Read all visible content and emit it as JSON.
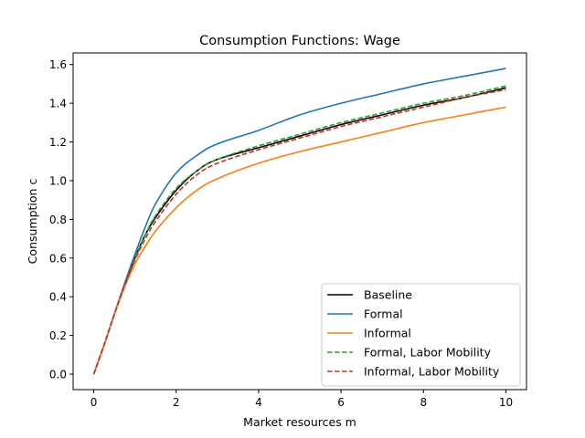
{
  "chart_data": {
    "type": "line",
    "title": "Consumption Functions: Wage",
    "xlabel": "Market resources m",
    "ylabel": "Consumption c",
    "xlim": [
      -0.5,
      10.5
    ],
    "ylim": [
      -0.08,
      1.66
    ],
    "xticks": [
      0,
      2,
      4,
      6,
      8,
      10
    ],
    "xtick_labels": [
      "0",
      "2",
      "4",
      "6",
      "8",
      "10"
    ],
    "yticks": [
      0.0,
      0.2,
      0.4,
      0.6,
      0.8,
      1.0,
      1.2,
      1.4,
      1.6
    ],
    "ytick_labels": [
      "0.0",
      "0.2",
      "0.4",
      "0.6",
      "0.8",
      "1.0",
      "1.2",
      "1.4",
      "1.6"
    ],
    "grid": false,
    "legend_position": "lower-right",
    "x": [
      0,
      0.25,
      0.5,
      0.75,
      1.0,
      1.25,
      1.5,
      2,
      2.5,
      3,
      4,
      5,
      6,
      7,
      8,
      9,
      10
    ],
    "series": [
      {
        "name": "Baseline",
        "color": "#000000",
        "dash": "solid",
        "values": [
          0.0,
          0.15,
          0.31,
          0.46,
          0.6,
          0.72,
          0.81,
          0.95,
          1.05,
          1.11,
          1.17,
          1.23,
          1.29,
          1.34,
          1.39,
          1.43,
          1.48
        ]
      },
      {
        "name": "Formal",
        "color": "#1f77b4",
        "dash": "solid",
        "values": [
          0.0,
          0.15,
          0.31,
          0.47,
          0.62,
          0.76,
          0.88,
          1.04,
          1.13,
          1.19,
          1.26,
          1.34,
          1.4,
          1.45,
          1.5,
          1.54,
          1.58
        ]
      },
      {
        "name": "Informal",
        "color": "#ff7f0e",
        "dash": "solid",
        "values": [
          0.0,
          0.15,
          0.31,
          0.45,
          0.57,
          0.66,
          0.74,
          0.86,
          0.95,
          1.01,
          1.09,
          1.15,
          1.2,
          1.25,
          1.3,
          1.34,
          1.38
        ]
      },
      {
        "name": "Formal, Labor Mobility",
        "color": "#2ca02c",
        "dash": "dashed",
        "values": [
          0.0,
          0.15,
          0.31,
          0.46,
          0.6,
          0.72,
          0.82,
          0.96,
          1.05,
          1.11,
          1.18,
          1.24,
          1.3,
          1.35,
          1.4,
          1.44,
          1.49
        ]
      },
      {
        "name": "Informal, Labor Mobility",
        "color": "#d62728",
        "dash": "dashed",
        "values": [
          0.0,
          0.15,
          0.31,
          0.46,
          0.59,
          0.7,
          0.79,
          0.93,
          1.03,
          1.09,
          1.16,
          1.22,
          1.28,
          1.33,
          1.38,
          1.43,
          1.47
        ]
      }
    ]
  }
}
